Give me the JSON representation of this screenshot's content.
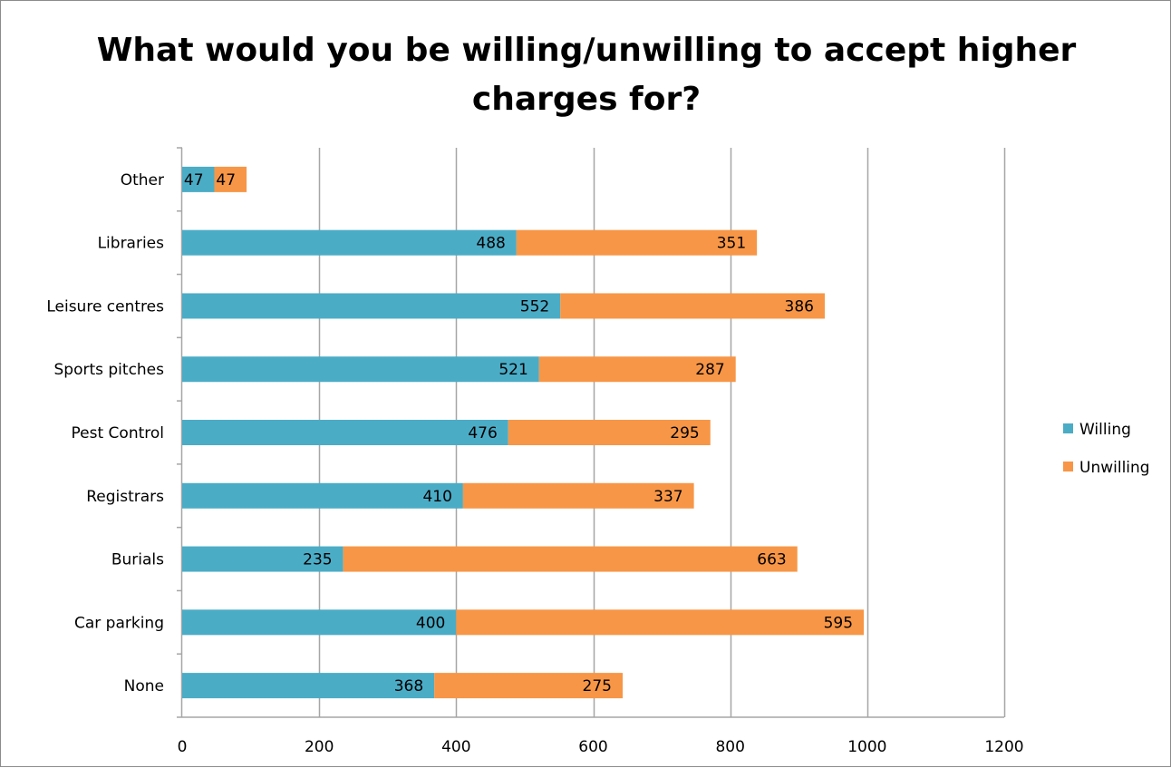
{
  "chart_data": {
    "type": "bar",
    "orientation": "horizontal",
    "stacked": true,
    "title_lines": [
      "What would you be willing/unwilling to accept higher",
      "charges for?"
    ],
    "categories": [
      "Other",
      "Libraries",
      "Leisure centres",
      "Sports pitches",
      "Pest Control",
      "Registrars",
      "Burials",
      "Car parking",
      "None"
    ],
    "series": [
      {
        "name": "Willing",
        "color": "#4BACC6",
        "values": [
          47,
          488,
          552,
          521,
          476,
          410,
          235,
          400,
          368
        ]
      },
      {
        "name": "Unwilling",
        "color": "#F79646",
        "values": [
          47,
          351,
          386,
          287,
          295,
          337,
          663,
          595,
          275
        ]
      }
    ],
    "xlim": [
      0,
      1200
    ],
    "xticks": [
      0,
      200,
      400,
      600,
      800,
      1000,
      1200
    ],
    "grid": true,
    "legend_position": "right",
    "data_labels": true
  }
}
